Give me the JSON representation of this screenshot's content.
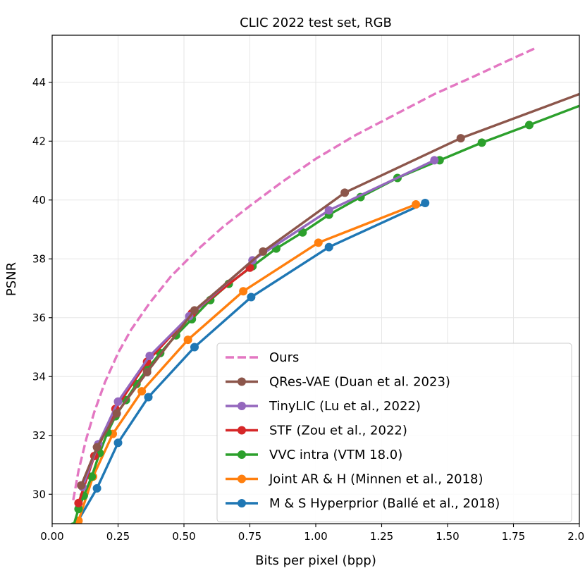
{
  "chart_data": {
    "type": "line",
    "title": "CLIC 2022 test set, RGB",
    "xlabel": "Bits per pixel (bpp)",
    "ylabel": "PSNR",
    "xlim": [
      0.0,
      2.0
    ],
    "ylim": [
      29.0,
      45.6
    ],
    "xticks": [
      0.0,
      0.25,
      0.5,
      0.75,
      1.0,
      1.25,
      1.5,
      1.75,
      2.0
    ],
    "xtick_labels": [
      "0.00",
      "0.25",
      "0.50",
      "0.75",
      "1.00",
      "1.25",
      "1.50",
      "1.75",
      "2.00"
    ],
    "yticks": [
      30,
      32,
      34,
      36,
      38,
      40,
      42,
      44
    ],
    "ytick_labels": [
      "30",
      "32",
      "34",
      "36",
      "38",
      "40",
      "42",
      "44"
    ],
    "grid": true,
    "legend_position": "lower-right",
    "series": [
      {
        "name": "Ours",
        "color": "#e377c2",
        "style": "dashed",
        "markers": false,
        "x": [
          0.08,
          0.1,
          0.13,
          0.16,
          0.2,
          0.25,
          0.3,
          0.37,
          0.45,
          0.55,
          0.65,
          0.75,
          0.87,
          1.0,
          1.15,
          1.3,
          1.45,
          1.6,
          1.72,
          1.83
        ],
        "y": [
          29.8,
          30.8,
          31.9,
          32.8,
          33.8,
          34.8,
          35.6,
          36.5,
          37.4,
          38.3,
          39.1,
          39.8,
          40.6,
          41.4,
          42.2,
          42.9,
          43.6,
          44.2,
          44.7,
          45.15
        ]
      },
      {
        "name": "QRes-VAE (Duan et al. 2023)",
        "color": "#8c564b",
        "style": "solid",
        "markers": true,
        "x": [
          0.11,
          0.17,
          0.245,
          0.36,
          0.54,
          0.8,
          1.11,
          1.55,
          2.0
        ],
        "y": [
          30.3,
          31.6,
          32.75,
          34.15,
          36.25,
          38.25,
          40.25,
          42.1,
          43.6
        ],
        "marker_count": 8
      },
      {
        "name": "TinyLIC (Lu et al., 2022)",
        "color": "#9467bd",
        "style": "solid",
        "markers": true,
        "x": [
          0.115,
          0.175,
          0.25,
          0.37,
          0.52,
          0.76,
          1.05,
          1.45
        ],
        "y": [
          30.25,
          31.7,
          33.15,
          34.7,
          36.05,
          37.95,
          39.65,
          41.35
        ]
      },
      {
        "name": "STF (Zou et al., 2022)",
        "color": "#d62728",
        "style": "solid",
        "markers": true,
        "x": [
          0.1,
          0.16,
          0.24,
          0.36,
          0.53,
          0.75
        ],
        "y": [
          29.7,
          31.3,
          32.9,
          34.5,
          36.15,
          37.7
        ]
      },
      {
        "name": "VVC intra (VTM 18.0)",
        "color": "#2ca02c",
        "style": "solid",
        "markers": true,
        "x": [
          0.08,
          0.1,
          0.12,
          0.15,
          0.18,
          0.21,
          0.24,
          0.28,
          0.32,
          0.36,
          0.41,
          0.47,
          0.53,
          0.6,
          0.67,
          0.76,
          0.85,
          0.95,
          1.05,
          1.17,
          1.31,
          1.47,
          1.63,
          1.81,
          2.0
        ],
        "y": [
          28.9,
          29.5,
          29.95,
          30.6,
          31.4,
          32.1,
          32.65,
          33.2,
          33.75,
          34.25,
          34.8,
          35.4,
          35.95,
          36.6,
          37.15,
          37.75,
          38.35,
          38.9,
          39.5,
          40.1,
          40.75,
          41.35,
          41.95,
          42.55,
          43.2
        ],
        "marker_count": 24
      },
      {
        "name": "Joint AR & H (Minnen et al., 2018)",
        "color": "#ff7f0e",
        "style": "solid",
        "markers": true,
        "x": [
          0.1,
          0.155,
          0.23,
          0.34,
          0.515,
          0.725,
          1.01,
          1.38
        ],
        "y": [
          29.1,
          30.6,
          32.05,
          33.5,
          35.25,
          36.9,
          38.55,
          39.85
        ]
      },
      {
        "name": "M & S Hyperprior (Ballé et al., 2018)",
        "color": "#1f77b4",
        "style": "solid",
        "markers": true,
        "x": [
          0.085,
          0.17,
          0.25,
          0.365,
          0.54,
          0.755,
          1.05,
          1.415
        ],
        "y": [
          28.9,
          30.2,
          31.75,
          33.3,
          35.0,
          36.7,
          38.4,
          39.9
        ]
      }
    ]
  }
}
